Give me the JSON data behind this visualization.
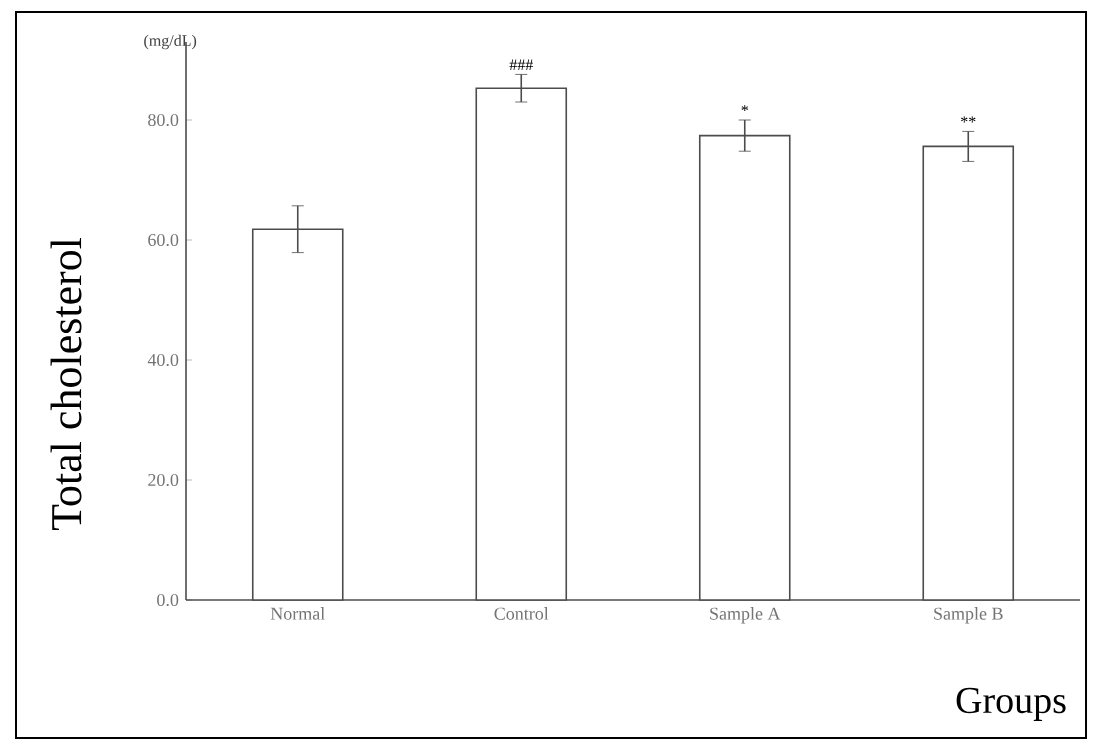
{
  "chart_data": {
    "type": "bar",
    "xlabel": "Groups",
    "ylabel": "Total cholesterol",
    "categories": [
      "Normal",
      "Control",
      "Sample A",
      "Sample B"
    ],
    "values": [
      61.8,
      85.3,
      77.4,
      75.6
    ],
    "errors": [
      3.9,
      2.3,
      2.6,
      2.5
    ],
    "color": "#ffffff",
    "ylim": [
      0,
      93
    ],
    "yticks": [
      {
        "value": 0,
        "label": "0.0"
      },
      {
        "value": 20,
        "label": "20.0"
      },
      {
        "value": 40,
        "label": "40.0"
      },
      {
        "value": 60,
        "label": "60.0"
      },
      {
        "value": 80,
        "label": "80.0"
      }
    ],
    "grid": false,
    "annotations": [
      "(mg/dL)",
      "###",
      "*",
      "**"
    ]
  }
}
